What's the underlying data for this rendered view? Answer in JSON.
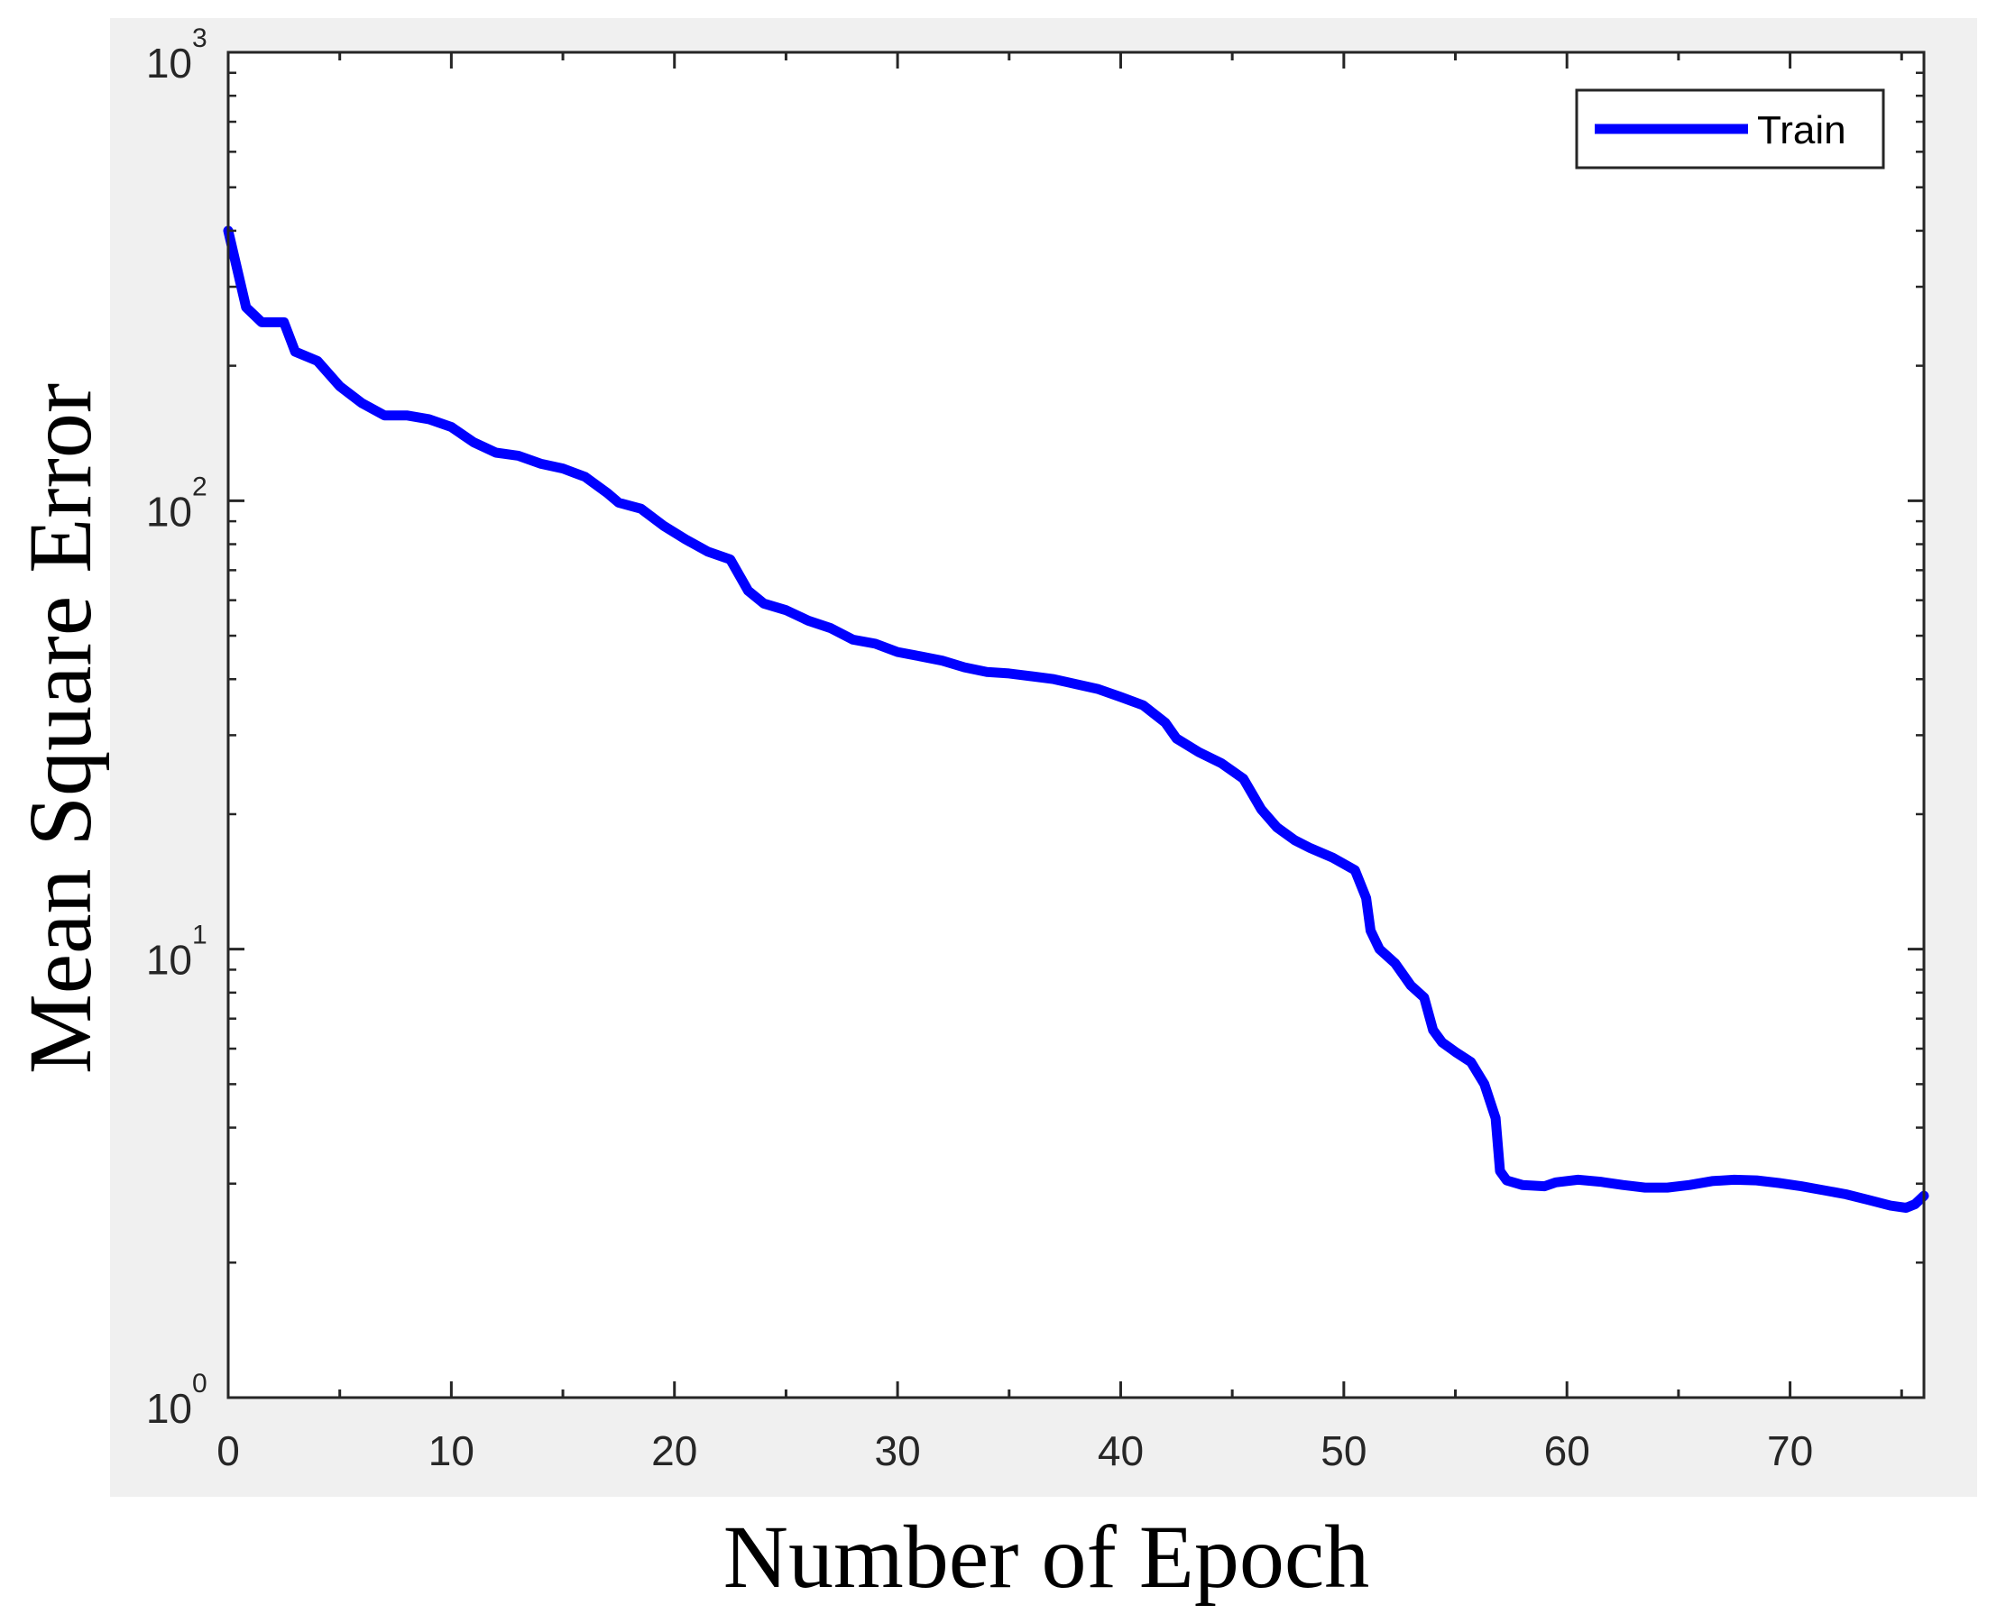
{
  "chart_data": {
    "type": "line",
    "title": "",
    "xlabel": "Number of Epoch",
    "ylabel": "Mean Square Error",
    "x_scale": "linear",
    "y_scale": "log",
    "xlim": [
      0,
      76
    ],
    "ylim": [
      1,
      1000
    ],
    "xticks": [
      0,
      10,
      20,
      30,
      40,
      50,
      60,
      70
    ],
    "xtick_labels": [
      "0",
      "10",
      "20",
      "30",
      "40",
      "50",
      "60",
      "70"
    ],
    "yticks": [
      1,
      10,
      100,
      1000
    ],
    "ytick_labels": [
      {
        "base": "10",
        "exp": "0"
      },
      {
        "base": "10",
        "exp": "1"
      },
      {
        "base": "10",
        "exp": "2"
      },
      {
        "base": "10",
        "exp": "3"
      }
    ],
    "grid": false,
    "legend": {
      "position": "top-right",
      "entries": [
        "Train"
      ]
    },
    "colors": {
      "line": "#0000ff",
      "axes_background": "#ffffff",
      "figure_background": "#f0f0f0",
      "axes_edge": "#262626"
    },
    "series": [
      {
        "name": "Train",
        "x": [
          0,
          0.8,
          1.5,
          2.5,
          3,
          4,
          5,
          6,
          7,
          8,
          9,
          10,
          11,
          12,
          13,
          14,
          15,
          16,
          17,
          17.5,
          18.5,
          19.5,
          20.5,
          21.5,
          22.5,
          23.3,
          24,
          25,
          26,
          27,
          28,
          29,
          30,
          31,
          32,
          33,
          34,
          35,
          36,
          37,
          38,
          39,
          40,
          41,
          42,
          42.5,
          43.5,
          44.5,
          45.5,
          46.3,
          47,
          47.8,
          48.5,
          49.5,
          50.5,
          51,
          51.2,
          51.6,
          52.3,
          53,
          53.6,
          54,
          54.4,
          55,
          55.7,
          56.3,
          56.8,
          57,
          57.3,
          58,
          59,
          59.5,
          60.5,
          61.5,
          62.5,
          63.5,
          64.5,
          65.5,
          66.5,
          67.5,
          68.5,
          69.5,
          70.5,
          71.5,
          72.5,
          73.5,
          74.5,
          75.2,
          75.6,
          76
        ],
        "y": [
          400,
          270,
          250,
          250,
          215,
          205,
          180,
          165,
          155,
          155,
          152,
          146,
          135,
          128,
          126,
          121,
          118,
          113,
          104,
          99,
          96,
          88,
          82,
          77,
          74,
          63,
          59,
          57,
          54,
          52,
          49,
          48,
          46,
          45,
          44,
          42.5,
          41.5,
          41.2,
          40.6,
          40,
          39,
          38,
          36.5,
          35,
          32,
          29.5,
          27.5,
          26,
          24,
          20.5,
          18.7,
          17.5,
          16.8,
          16,
          15,
          13,
          11,
          10,
          9.3,
          8.3,
          7.8,
          6.6,
          6.2,
          5.9,
          5.6,
          5,
          4.2,
          3.2,
          3.05,
          2.98,
          2.96,
          3.02,
          3.06,
          3.03,
          2.98,
          2.94,
          2.94,
          2.98,
          3.04,
          3.06,
          3.05,
          3.01,
          2.96,
          2.9,
          2.84,
          2.76,
          2.68,
          2.65,
          2.7,
          2.82
        ]
      }
    ]
  }
}
